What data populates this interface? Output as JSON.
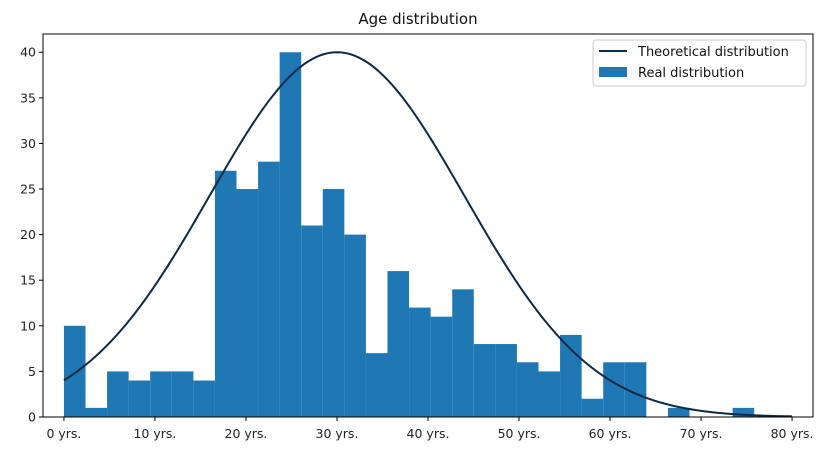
{
  "chart_data": {
    "type": "bar",
    "title": "Age distribution",
    "xlabel": "",
    "ylabel": "",
    "xlim": [
      -2.3,
      82.3
    ],
    "ylim": [
      0,
      42
    ],
    "x_ticks": [
      0,
      10,
      20,
      30,
      40,
      50,
      60,
      70,
      80
    ],
    "x_tick_labels": [
      "0 yrs.",
      "10 yrs.",
      "20 yrs.",
      "30 yrs.",
      "40 yrs.",
      "50 yrs.",
      "60 yrs.",
      "70 yrs.",
      "80 yrs."
    ],
    "y_ticks": [
      0,
      5,
      10,
      15,
      20,
      25,
      30,
      35,
      40
    ],
    "y_tick_labels": [
      "0",
      "5",
      "10",
      "15",
      "20",
      "25",
      "30",
      "35",
      "40"
    ],
    "grid": false,
    "legend_position": "top-right",
    "series": [
      {
        "name": "Theoretical distribution",
        "type": "line",
        "color": "#0b2a45",
        "mean": 30,
        "sd": 14,
        "peak": 40,
        "x_range": [
          0,
          80
        ]
      },
      {
        "name": "Real distribution",
        "type": "histogram",
        "color": "#1f77b4",
        "bin_width": 2.37,
        "bin_starts": [
          0,
          2.37,
          4.74,
          7.11,
          9.48,
          11.85,
          14.22,
          16.59,
          18.96,
          21.33,
          23.7,
          26.07,
          28.44,
          30.81,
          33.18,
          35.55,
          37.92,
          40.29,
          42.66,
          45.03,
          47.4,
          49.77,
          52.14,
          54.51,
          56.88,
          59.25,
          61.62,
          63.99,
          66.36,
          68.73,
          71.1,
          73.47
        ],
        "values": [
          10,
          1,
          5,
          4,
          5,
          5,
          4,
          27,
          25,
          28,
          40,
          21,
          25,
          20,
          7,
          16,
          12,
          11,
          14,
          8,
          8,
          6,
          5,
          9,
          2,
          6,
          6,
          0,
          1,
          0,
          0,
          1
        ]
      }
    ]
  }
}
